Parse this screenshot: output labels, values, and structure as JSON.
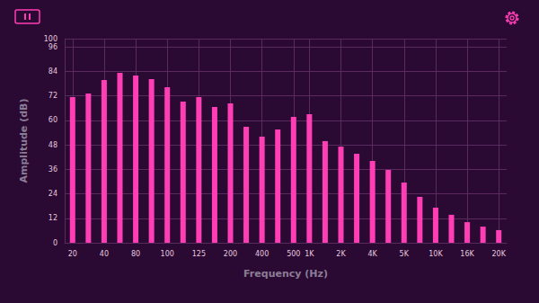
{
  "chart_data": {
    "type": "bar",
    "x_label": "Frequency (Hz)",
    "y_label": "Amplitude (dB)",
    "categories": [
      "20",
      null,
      "40",
      null,
      "80",
      null,
      "100",
      null,
      "125",
      null,
      "200",
      null,
      "400",
      null,
      "500",
      "1K",
      null,
      "2K",
      null,
      "4K",
      null,
      "5K",
      null,
      "10K",
      null,
      "16K",
      null,
      "20K"
    ],
    "values": [
      71.4,
      73.1,
      79.7,
      83.3,
      81.9,
      80.2,
      76.2,
      69.2,
      71.4,
      66.5,
      68.3,
      56.8,
      52,
      55.5,
      61.7,
      63,
      49.8,
      47.1,
      43.6,
      40.1,
      35.7,
      29.5,
      22.5,
      17.2,
      13.7,
      10.1,
      7.9,
      6.2
    ],
    "color": "#ff3db4",
    "ylim": [
      0,
      100
    ],
    "yticks": [
      0,
      12,
      24,
      36,
      48,
      60,
      72,
      84,
      96,
      100
    ],
    "grid": true
  }
}
